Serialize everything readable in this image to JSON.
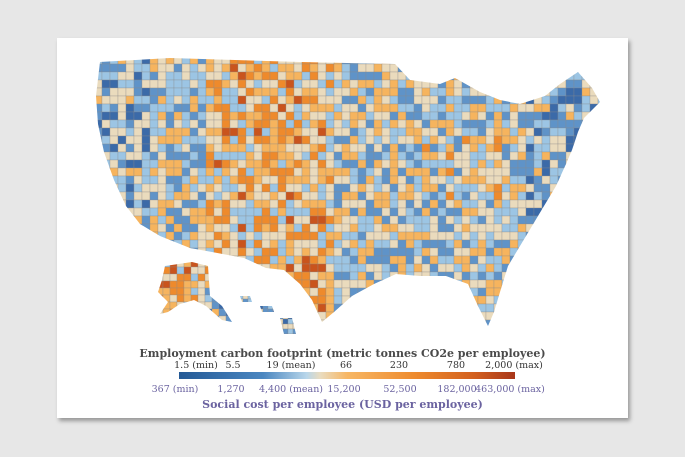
{
  "legend": {
    "top_title": "Employment carbon footprint (metric tonnes CO2e per employee)",
    "top_ticks": [
      "1.5 (min)",
      "5.5",
      "19 (mean)",
      "66",
      "230",
      "780",
      "2,000 (max)"
    ],
    "bottom_ticks": [
      "367 (min)",
      "1,270",
      "4,400 (mean)",
      "15,200",
      "52,500",
      "182,000",
      "463,000 (max)"
    ],
    "bottom_title": "Social cost per employee (USD per employee)"
  },
  "colors": {
    "dark_blue": "#3b6aa8",
    "blue": "#5f93c8",
    "light_blue": "#9cc5e4",
    "beige": "#eadbbd",
    "light_orange": "#f6b45e",
    "orange": "#ee8a2c",
    "dark_orange": "#c9541d"
  }
}
